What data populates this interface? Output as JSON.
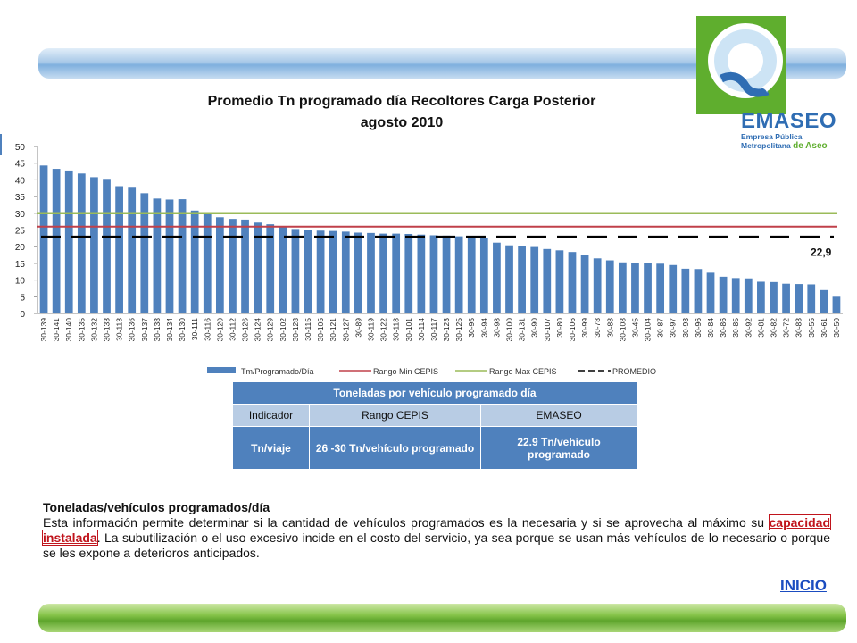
{
  "logo": {
    "name": "EMASEO",
    "line1": "Empresa Pública",
    "line2": "Metropolitana",
    "line2_accent": "de Aseo"
  },
  "chart_data": {
    "type": "bar",
    "title": "Promedio Tn programado día Recoltores Carga Posterior",
    "subtitle": "agosto 2010",
    "ylim": [
      0,
      50
    ],
    "yticks": [
      0,
      5,
      10,
      15,
      20,
      25,
      30,
      35,
      40,
      45,
      50
    ],
    "categories": [
      "30-139",
      "30-141",
      "30-140",
      "30-135",
      "30-132",
      "30-133",
      "30-113",
      "30-136",
      "30-137",
      "30-138",
      "30-134",
      "30-130",
      "30-111",
      "30-116",
      "30-120",
      "30-112",
      "30-126",
      "30-124",
      "30-129",
      "30-102",
      "30-128",
      "30-115",
      "30-105",
      "30-121",
      "30-127",
      "30-89",
      "30-119",
      "30-122",
      "30-118",
      "30-101",
      "30-114",
      "30-117",
      "30-123",
      "30-125",
      "30-95",
      "30-94",
      "30-98",
      "30-100",
      "30-131",
      "30-90",
      "30-107",
      "30-80",
      "30-106",
      "30-99",
      "30-78",
      "30-88",
      "30-108",
      "30-45",
      "30-104",
      "30-87",
      "30-97",
      "30-93",
      "30-96",
      "30-84",
      "30-86",
      "30-85",
      "30-92",
      "30-81",
      "30-82",
      "30-72",
      "30-83",
      "30-55",
      "30-61",
      "30-50"
    ],
    "series": [
      {
        "name": "Tm/Programado/Día",
        "type": "bar",
        "color": "#4f81bd",
        "values": [
          44.3,
          43.3,
          42.8,
          41.9,
          40.8,
          40.3,
          38.1,
          37.9,
          36.0,
          34.4,
          34.1,
          34.2,
          30.8,
          30.0,
          28.8,
          28.3,
          28.1,
          27.2,
          26.7,
          25.8,
          25.3,
          25.1,
          24.8,
          24.7,
          24.5,
          24.2,
          24.1,
          23.9,
          23.9,
          23.8,
          23.6,
          23.4,
          23.3,
          23.1,
          22.8,
          22.5,
          21.2,
          20.4,
          20.1,
          19.9,
          19.3,
          18.9,
          18.4,
          17.6,
          16.5,
          15.9,
          15.3,
          15.1,
          15.0,
          14.9,
          14.5,
          13.4,
          13.3,
          12.2,
          11.0,
          10.6,
          10.5,
          9.5,
          9.4,
          8.9,
          8.8,
          8.7,
          7.0,
          5.0
        ]
      },
      {
        "name": "Rango Min CEPIS",
        "type": "line",
        "color": "#c0404a",
        "value": 26
      },
      {
        "name": "Rango Max CEPIS",
        "type": "line",
        "color": "#9bbb59",
        "value": 30
      },
      {
        "name": "PROMEDIO",
        "type": "dashed",
        "color": "#000000",
        "value": 22.9
      }
    ],
    "annotation": "22,9",
    "grid": false,
    "legend_position": "bottom"
  },
  "table": {
    "title": "Toneladas por vehículo programado día",
    "headers": [
      "Indicador",
      "Rango CEPIS",
      "EMASEO"
    ],
    "row": [
      "Tn/viaje",
      "26 -30 Tn/vehículo programado",
      "22.9 Tn/vehículo programado"
    ]
  },
  "description": {
    "title": "Toneladas/vehículos programados/día",
    "text_before": "Esta información permite determinar si la cantidad de vehículos programados es la necesaria y si se aprovecha al máximo su ",
    "link": "capacidad instalada",
    "text_after": ". La subutilización o el uso excesivo incide en el costo del servicio, ya sea porque se usan más vehículos de lo necesario o porque se les expone a deterioros anticipados."
  },
  "nav": {
    "inicio": "INICIO"
  }
}
